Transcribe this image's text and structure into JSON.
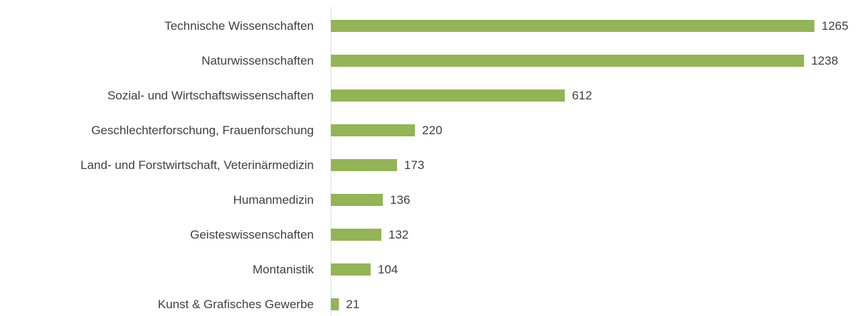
{
  "chart_data": {
    "type": "bar",
    "orientation": "horizontal",
    "categories": [
      "Technische Wissenschaften",
      "Naturwissenschaften",
      "Sozial- und Wirtschaftswissenschaften",
      "Geschlechterforschung, Frauenforschung",
      "Land- und Forstwirtschaft, Veterinärmedizin",
      "Humanmedizin",
      "Geisteswissenschaften",
      "Montanistik",
      "Kunst & Grafisches Gewerbe"
    ],
    "values": [
      1265,
      1238,
      612,
      220,
      173,
      136,
      132,
      104,
      21
    ],
    "color": "#92b556",
    "xlim": [
      0,
      1400
    ],
    "grid": false
  }
}
